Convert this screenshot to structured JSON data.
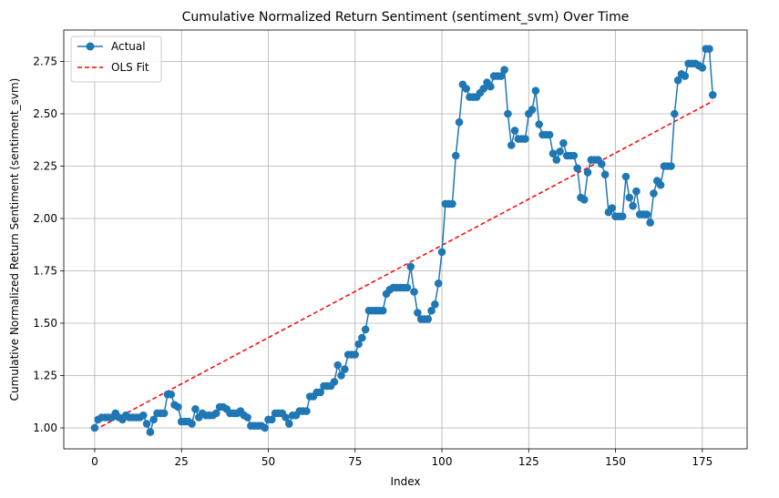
{
  "chart_data": {
    "type": "line",
    "title": "Cumulative Normalized Return Sentiment (sentiment_svm) Over Time",
    "xlabel": "Index",
    "ylabel": "Cumulative Normalized Return Sentiment (sentiment_svm)",
    "xlim": [
      -8.9,
      187.9
    ],
    "ylim": [
      0.9,
      2.9
    ],
    "xticks": [
      0,
      25,
      50,
      75,
      100,
      125,
      150,
      175
    ],
    "xtick_labels": [
      "0",
      "25",
      "50",
      "75",
      "100",
      "125",
      "150",
      "175"
    ],
    "yticks": [
      1.0,
      1.25,
      1.5,
      1.75,
      2.0,
      2.25,
      2.5,
      2.75
    ],
    "ytick_labels": [
      "1.00",
      "1.25",
      "1.50",
      "1.75",
      "2.00",
      "2.25",
      "2.50",
      "2.75"
    ],
    "grid": true,
    "legend_position": "top-left",
    "series": [
      {
        "name": "Actual",
        "color": "#1f77b4",
        "style": "line-with-circle-markers",
        "values": [
          1.0,
          1.04,
          1.05,
          1.05,
          1.05,
          1.05,
          1.07,
          1.05,
          1.04,
          1.06,
          1.05,
          1.05,
          1.05,
          1.05,
          1.06,
          1.02,
          0.98,
          1.04,
          1.07,
          1.07,
          1.07,
          1.16,
          1.16,
          1.11,
          1.1,
          1.03,
          1.03,
          1.03,
          1.02,
          1.09,
          1.05,
          1.07,
          1.06,
          1.06,
          1.06,
          1.07,
          1.1,
          1.1,
          1.09,
          1.07,
          1.07,
          1.07,
          1.08,
          1.06,
          1.05,
          1.01,
          1.01,
          1.01,
          1.01,
          1.0,
          1.04,
          1.04,
          1.07,
          1.07,
          1.07,
          1.05,
          1.02,
          1.06,
          1.06,
          1.08,
          1.08,
          1.08,
          1.15,
          1.15,
          1.17,
          1.17,
          1.2,
          1.2,
          1.2,
          1.22,
          1.3,
          1.25,
          1.28,
          1.35,
          1.35,
          1.35,
          1.4,
          1.43,
          1.47,
          1.56,
          1.56,
          1.56,
          1.56,
          1.56,
          1.64,
          1.66,
          1.67,
          1.67,
          1.67,
          1.67,
          1.67,
          1.77,
          1.65,
          1.55,
          1.52,
          1.52,
          1.52,
          1.56,
          1.59,
          1.69,
          1.84,
          2.07,
          2.07,
          2.07,
          2.3,
          2.46,
          2.64,
          2.62,
          2.58,
          2.58,
          2.58,
          2.6,
          2.62,
          2.65,
          2.63,
          2.68,
          2.68,
          2.68,
          2.71,
          2.5,
          2.35,
          2.42,
          2.38,
          2.38,
          2.38,
          2.5,
          2.52,
          2.61,
          2.45,
          2.4,
          2.4,
          2.4,
          2.31,
          2.28,
          2.32,
          2.36,
          2.3,
          2.3,
          2.3,
          2.24,
          2.1,
          2.09,
          2.22,
          2.28,
          2.28,
          2.28,
          2.26,
          2.21,
          2.03,
          2.05,
          2.01,
          2.01,
          2.01,
          2.2,
          2.1,
          2.06,
          2.13,
          2.02,
          2.02,
          2.02,
          1.98,
          2.12,
          2.18,
          2.16,
          2.25,
          2.25,
          2.25,
          2.5,
          2.66,
          2.69,
          2.68,
          2.74,
          2.74,
          2.74,
          2.73,
          2.72,
          2.81,
          2.81,
          2.59
        ]
      },
      {
        "name": "OLS Fit",
        "color": "#ff0000",
        "style": "dashed",
        "x": [
          0,
          178
        ],
        "values": [
          0.99,
          2.56
        ]
      }
    ]
  }
}
